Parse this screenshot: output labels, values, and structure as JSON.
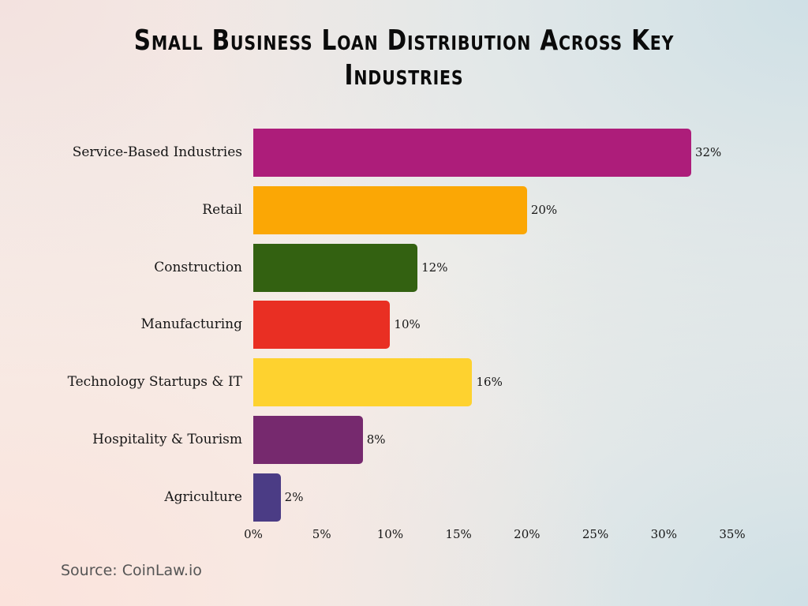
{
  "title": "Small Business Loan Distribution Across Key Industries",
  "source": "Source: CoinLaw.io",
  "chart_data": {
    "type": "bar",
    "orientation": "horizontal",
    "title": "Small Business Loan Distribution Across Key Industries",
    "xlabel": "",
    "ylabel": "",
    "categories": [
      "Service-Based Industries",
      "Retail",
      "Construction",
      "Manufacturing",
      "Technology Startups & IT",
      "Hospitality & Tourism",
      "Agriculture"
    ],
    "values": [
      32,
      20,
      12,
      10,
      16,
      8,
      2
    ],
    "value_labels": [
      "32%",
      "20%",
      "12%",
      "10%",
      "16%",
      "8%",
      "2%"
    ],
    "colors": [
      "#ad1d7a",
      "#fba705",
      "#336111",
      "#e92f23",
      "#fed22f",
      "#76296e",
      "#4b3c85"
    ],
    "xlim": [
      0,
      35
    ],
    "xticks": [
      "0%",
      "5%",
      "10%",
      "15%",
      "20%",
      "25%",
      "30%",
      "35%"
    ],
    "grid": false,
    "legend": null
  }
}
